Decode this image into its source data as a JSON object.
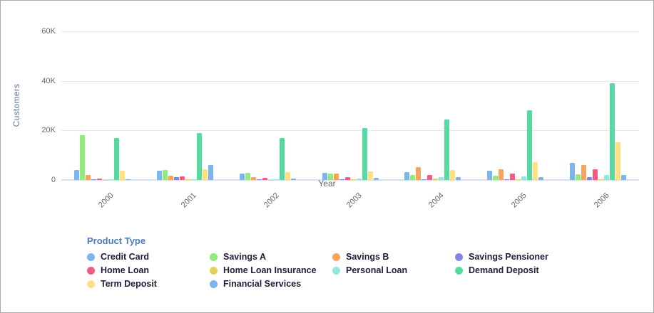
{
  "chart_data": {
    "type": "bar",
    "title": "",
    "xlabel": "Year",
    "ylabel": "Customers",
    "ylim": [
      0,
      60000
    ],
    "yticks": [
      {
        "label": "0",
        "value": 0
      },
      {
        "label": "20K",
        "value": 20000
      },
      {
        "label": "40K",
        "value": 40000
      },
      {
        "label": "60K",
        "value": 60000
      }
    ],
    "grid": true,
    "legend_title": "Product Type",
    "legend_position": "bottom",
    "categories": [
      "2000",
      "2001",
      "2002",
      "2003",
      "2004",
      "2005",
      "2006"
    ],
    "series": [
      {
        "name": "Credit Card",
        "color": "#7cb5ec",
        "values": [
          4100,
          3600,
          2600,
          3000,
          3100,
          3700,
          7000
        ]
      },
      {
        "name": "Savings A",
        "color": "#90ed7d",
        "values": [
          18000,
          4100,
          3000,
          2500,
          2000,
          1700,
          2200
        ]
      },
      {
        "name": "Savings B",
        "color": "#f7a35c",
        "values": [
          2000,
          1700,
          1200,
          2600,
          5100,
          4400,
          6100
        ]
      },
      {
        "name": "Savings Pensioner",
        "color": "#8085e9",
        "values": [
          150,
          1100,
          200,
          250,
          300,
          400,
          1200
        ]
      },
      {
        "name": "Home Loan",
        "color": "#f15c80",
        "values": [
          700,
          1300,
          750,
          1200,
          2100,
          2500,
          4400
        ]
      },
      {
        "name": "Home Loan Insurance",
        "color": "#e4d354",
        "values": [
          100,
          150,
          100,
          200,
          600,
          250,
          300
        ]
      },
      {
        "name": "Personal Loan",
        "color": "#91e8e1",
        "values": [
          150,
          200,
          250,
          650,
          1050,
          1500,
          2100
        ]
      },
      {
        "name": "Demand Deposit",
        "color": "#57d9a2",
        "values": [
          16800,
          18900,
          17000,
          21000,
          24500,
          28200,
          39000
        ]
      },
      {
        "name": "Term Deposit",
        "color": "#ffe083",
        "values": [
          3600,
          4300,
          3300,
          3500,
          4100,
          7300,
          15100
        ]
      },
      {
        "name": "Financial Services",
        "color": "#7cb5ec",
        "values": [
          150,
          6000,
          500,
          750,
          1050,
          1100,
          2100
        ]
      }
    ]
  }
}
